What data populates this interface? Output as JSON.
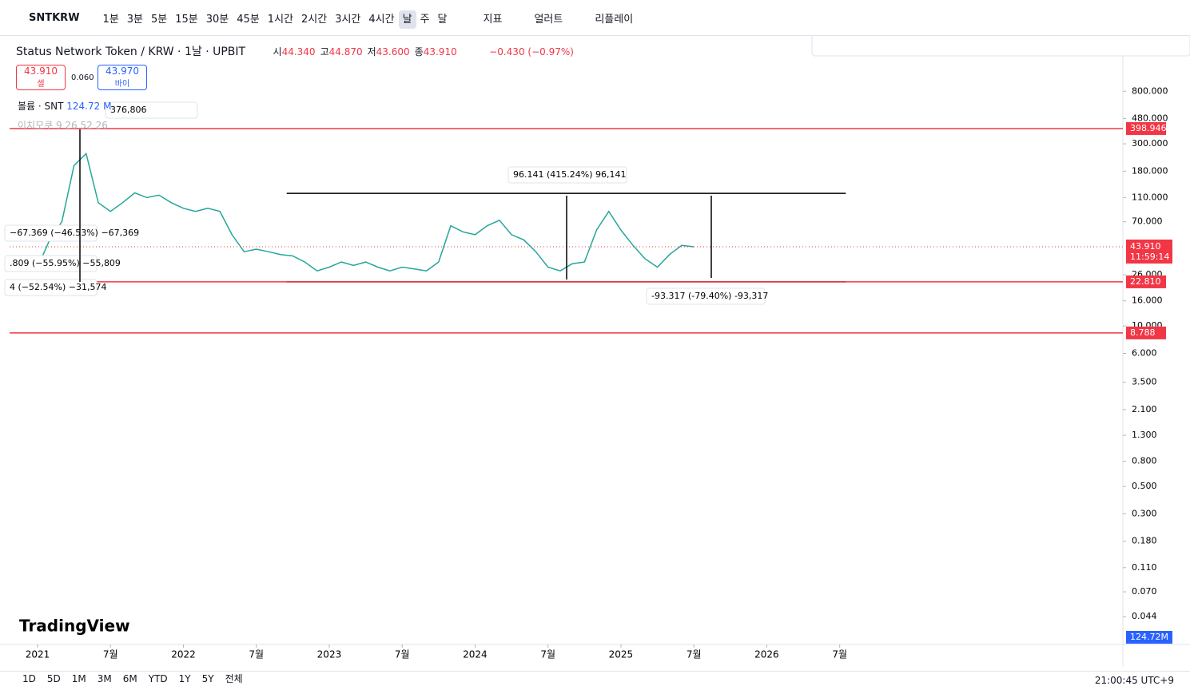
{
  "toolbar": {
    "symbol": "SNTKRW",
    "intervals": [
      "1분",
      "3분",
      "5분",
      "15분",
      "30분",
      "45분",
      "1시간",
      "2시간",
      "3시간",
      "4시간",
      "날",
      "주",
      "달"
    ],
    "indicators": "지표",
    "alert": "얼러트",
    "replay": "리플레이"
  },
  "legend": {
    "title": "Status Network Token / KRW · 1날 · UPBIT",
    "ohlc": [
      {
        "label": "시",
        "value": "44.340"
      },
      {
        "label": "고",
        "value": "44.870"
      },
      {
        "label": "저",
        "value": "43.600"
      },
      {
        "label": "종",
        "value": "43.910"
      }
    ],
    "change": "−0.430 (−0.97%)",
    "sell": {
      "price": "43.910",
      "label": "셀"
    },
    "spread": "0.060",
    "buy": {
      "price": "43.970",
      "label": "바이"
    },
    "volume": {
      "label": "볼륨 · SNT",
      "value": "124.72 M"
    },
    "ichimoku": "이치모쿠 9 26 52 26"
  },
  "chart_data": {
    "type": "line",
    "color": "#26a69a",
    "log": true,
    "values": [
      30,
      50,
      70,
      200,
      250,
      100,
      85,
      100,
      120,
      110,
      115,
      100,
      90,
      85,
      90,
      85,
      55,
      40,
      42,
      40,
      38,
      37,
      33,
      28,
      30,
      33,
      31,
      33,
      30,
      28,
      30,
      29,
      28,
      33,
      65,
      58,
      55,
      65,
      72,
      55,
      50,
      40,
      30,
      28,
      32,
      33,
      60,
      85,
      60,
      45,
      35,
      30,
      38,
      45,
      43.91
    ],
    "xlim": [
      -2.3,
      89.3
    ],
    "xticks": [
      {
        "value": 0,
        "label": "2021"
      },
      {
        "value": 6,
        "label": "7월"
      },
      {
        "value": 12,
        "label": "2022"
      },
      {
        "value": 18,
        "label": "7월"
      },
      {
        "value": 24,
        "label": "2023"
      },
      {
        "value": 30,
        "label": "7월"
      },
      {
        "value": 36,
        "label": "2024"
      },
      {
        "value": 42,
        "label": "7월"
      },
      {
        "value": 48,
        "label": "2025"
      },
      {
        "value": 54,
        "label": "7월"
      },
      {
        "value": 60,
        "label": "2026"
      },
      {
        "value": 66,
        "label": "7월"
      }
    ],
    "ylim": [
      0.027,
      1374
    ],
    "yticks": [
      {
        "value": 800,
        "label": "800.000"
      },
      {
        "value": 480,
        "label": "480.000"
      },
      {
        "value": 300,
        "label": "300.000"
      },
      {
        "value": 180,
        "label": "180.000"
      },
      {
        "value": 110,
        "label": "110.000"
      },
      {
        "value": 70,
        "label": "70.000"
      },
      {
        "value": 26,
        "label": "26.000"
      },
      {
        "value": 16,
        "label": "16.000"
      },
      {
        "value": 10,
        "label": "10.000"
      },
      {
        "value": 6,
        "label": "6.000"
      },
      {
        "value": 3.5,
        "label": "3.500"
      },
      {
        "value": 2.1,
        "label": "2.100"
      },
      {
        "value": 1.3,
        "label": "1.300"
      },
      {
        "value": 0.8,
        "label": "0.800"
      },
      {
        "value": 0.5,
        "label": "0.500"
      },
      {
        "value": 0.3,
        "label": "0.300"
      },
      {
        "value": 0.18,
        "label": "0.180"
      },
      {
        "value": 0.11,
        "label": "0.110"
      },
      {
        "value": 0.07,
        "label": "0.070"
      },
      {
        "value": 0.044,
        "label": "0.044"
      }
    ],
    "hlines": [
      {
        "value": 398.946,
        "label": "398.946",
        "color": "#f23645"
      },
      {
        "value": 22.81,
        "label": "22.810",
        "color": "#f23645"
      },
      {
        "value": 8.788,
        "label": "8.788",
        "color": "#f23645"
      }
    ],
    "last": {
      "value": 43.91,
      "label": "43.910",
      "countdown": "11:59:14",
      "color": "#f23645"
    },
    "channel": [
      119,
      22.81
    ],
    "volume_label": "124.72M",
    "measures": [
      "96.141 (415.24%) 96,141",
      "-93.317 (-79.40%) -93,317",
      "−67.369 (−46.53%) −67,369",
      ".809 (−55.95%) −55,809",
      "4 (−52.54%) −31,574",
      "376,806"
    ]
  },
  "brand": "TradingView",
  "range_buttons": [
    "1D",
    "5D",
    "1M",
    "3M",
    "6M",
    "YTD",
    "1Y",
    "5Y",
    "전체"
  ],
  "clock": "21:00:45 UTC+9"
}
